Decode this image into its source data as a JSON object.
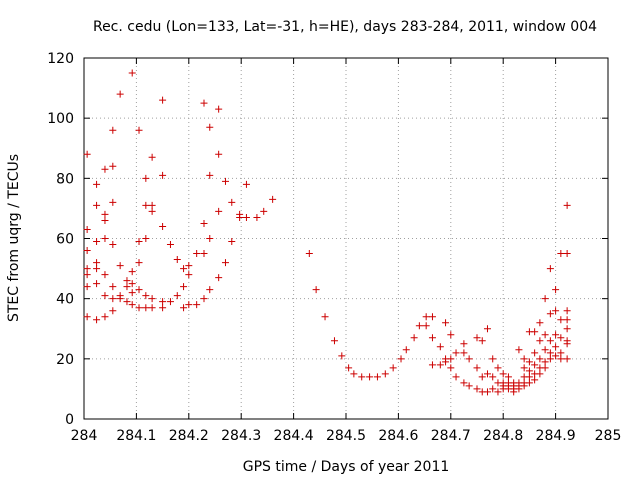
{
  "chart_data": {
    "type": "scatter",
    "title": "Rec. cedu (Lon=133, Lat=-31, h=HE), days 283-284, 2011, window 004",
    "xlabel": "GPS time / Days of year 2011",
    "ylabel": "STEC from uqrg / TECUs",
    "xlim": [
      284,
      285
    ],
    "ylim": [
      0,
      120
    ],
    "x_ticks": [
      "284",
      "284.1",
      "284.2",
      "284.3",
      "284.4",
      "284.5",
      "284.6",
      "284.7",
      "284.8",
      "284.9",
      "285"
    ],
    "y_ticks": [
      "0",
      "20",
      "40",
      "60",
      "80",
      "100",
      "120"
    ],
    "grid": true,
    "marker": "+",
    "color": "#cc0000",
    "points": [
      [
        284.006,
        88
      ],
      [
        284.006,
        63
      ],
      [
        284.006,
        56
      ],
      [
        284.006,
        50
      ],
      [
        284.006,
        48
      ],
      [
        284.006,
        44
      ],
      [
        284.006,
        34
      ],
      [
        284.024,
        78
      ],
      [
        284.024,
        71
      ],
      [
        284.024,
        59
      ],
      [
        284.024,
        52
      ],
      [
        284.024,
        50
      ],
      [
        284.024,
        45
      ],
      [
        284.024,
        33
      ],
      [
        284.04,
        83
      ],
      [
        284.04,
        68
      ],
      [
        284.04,
        66
      ],
      [
        284.04,
        60
      ],
      [
        284.04,
        48
      ],
      [
        284.04,
        41
      ],
      [
        284.04,
        34
      ],
      [
        284.055,
        96
      ],
      [
        284.055,
        84
      ],
      [
        284.055,
        72
      ],
      [
        284.055,
        58
      ],
      [
        284.055,
        44
      ],
      [
        284.055,
        40
      ],
      [
        284.055,
        36
      ],
      [
        284.069,
        108
      ],
      [
        284.069,
        51
      ],
      [
        284.069,
        41
      ],
      [
        284.069,
        40
      ],
      [
        284.082,
        46
      ],
      [
        284.082,
        44
      ],
      [
        284.082,
        39
      ],
      [
        284.092,
        115
      ],
      [
        284.092,
        49
      ],
      [
        284.092,
        45
      ],
      [
        284.092,
        42
      ],
      [
        284.092,
        38
      ],
      [
        284.105,
        96
      ],
      [
        284.105,
        59
      ],
      [
        284.105,
        52
      ],
      [
        284.105,
        43
      ],
      [
        284.105,
        37
      ],
      [
        284.118,
        80
      ],
      [
        284.118,
        71
      ],
      [
        284.118,
        60
      ],
      [
        284.118,
        41
      ],
      [
        284.118,
        37
      ],
      [
        284.13,
        87
      ],
      [
        284.13,
        71
      ],
      [
        284.13,
        69
      ],
      [
        284.13,
        40
      ],
      [
        284.13,
        37
      ],
      [
        284.15,
        106
      ],
      [
        284.15,
        81
      ],
      [
        284.15,
        64
      ],
      [
        284.15,
        39
      ],
      [
        284.15,
        37
      ],
      [
        284.165,
        58
      ],
      [
        284.165,
        39
      ],
      [
        284.178,
        53
      ],
      [
        284.178,
        41
      ],
      [
        284.19,
        50
      ],
      [
        284.19,
        44
      ],
      [
        284.19,
        37
      ],
      [
        284.2,
        51
      ],
      [
        284.2,
        48
      ],
      [
        284.2,
        38
      ],
      [
        284.215,
        55
      ],
      [
        284.215,
        38
      ],
      [
        284.229,
        105
      ],
      [
        284.229,
        65
      ],
      [
        284.229,
        55
      ],
      [
        284.229,
        40
      ],
      [
        284.24,
        97
      ],
      [
        284.24,
        81
      ],
      [
        284.24,
        60
      ],
      [
        284.24,
        43
      ],
      [
        284.257,
        103
      ],
      [
        284.257,
        88
      ],
      [
        284.257,
        69
      ],
      [
        284.257,
        47
      ],
      [
        284.27,
        79
      ],
      [
        284.27,
        52
      ],
      [
        284.282,
        72
      ],
      [
        284.282,
        59
      ],
      [
        284.297,
        68
      ],
      [
        284.297,
        67
      ],
      [
        284.31,
        78
      ],
      [
        284.31,
        67
      ],
      [
        284.33,
        67
      ],
      [
        284.343,
        69
      ],
      [
        284.36,
        73
      ],
      [
        284.43,
        55
      ],
      [
        284.443,
        43
      ],
      [
        284.46,
        34
      ],
      [
        284.478,
        26
      ],
      [
        284.492,
        21
      ],
      [
        284.505,
        17
      ],
      [
        284.515,
        15
      ],
      [
        284.53,
        14
      ],
      [
        284.545,
        14
      ],
      [
        284.56,
        14
      ],
      [
        284.575,
        15
      ],
      [
        284.59,
        17
      ],
      [
        284.605,
        20
      ],
      [
        284.615,
        23
      ],
      [
        284.63,
        27
      ],
      [
        284.64,
        31
      ],
      [
        284.653,
        34
      ],
      [
        284.653,
        31
      ],
      [
        284.665,
        34
      ],
      [
        284.665,
        27
      ],
      [
        284.665,
        18
      ],
      [
        284.68,
        24
      ],
      [
        284.68,
        18
      ],
      [
        284.69,
        32
      ],
      [
        284.69,
        20
      ],
      [
        284.69,
        19
      ],
      [
        284.7,
        28
      ],
      [
        284.7,
        20
      ],
      [
        284.7,
        17
      ],
      [
        284.71,
        22
      ],
      [
        284.71,
        14
      ],
      [
        284.725,
        25
      ],
      [
        284.725,
        22
      ],
      [
        284.725,
        12
      ],
      [
        284.735,
        20
      ],
      [
        284.735,
        11
      ],
      [
        284.75,
        27
      ],
      [
        284.75,
        17
      ],
      [
        284.75,
        10
      ],
      [
        284.76,
        26
      ],
      [
        284.76,
        14
      ],
      [
        284.76,
        9
      ],
      [
        284.77,
        30
      ],
      [
        284.77,
        15
      ],
      [
        284.77,
        9
      ],
      [
        284.78,
        20
      ],
      [
        284.78,
        14
      ],
      [
        284.78,
        10
      ],
      [
        284.79,
        17
      ],
      [
        284.79,
        12
      ],
      [
        284.79,
        9
      ],
      [
        284.8,
        15
      ],
      [
        284.8,
        12
      ],
      [
        284.8,
        11
      ],
      [
        284.8,
        10
      ],
      [
        284.81,
        14
      ],
      [
        284.81,
        12
      ],
      [
        284.81,
        11
      ],
      [
        284.81,
        10
      ],
      [
        284.82,
        12
      ],
      [
        284.82,
        11
      ],
      [
        284.82,
        10
      ],
      [
        284.82,
        9
      ],
      [
        284.83,
        23
      ],
      [
        284.83,
        12
      ],
      [
        284.83,
        11
      ],
      [
        284.83,
        10
      ],
      [
        284.84,
        20
      ],
      [
        284.84,
        17
      ],
      [
        284.84,
        14
      ],
      [
        284.84,
        12
      ],
      [
        284.84,
        11
      ],
      [
        284.85,
        29
      ],
      [
        284.85,
        19
      ],
      [
        284.85,
        16
      ],
      [
        284.85,
        14
      ],
      [
        284.85,
        12
      ],
      [
        284.86,
        29
      ],
      [
        284.86,
        22
      ],
      [
        284.86,
        18
      ],
      [
        284.86,
        15
      ],
      [
        284.86,
        13
      ],
      [
        284.87,
        32
      ],
      [
        284.87,
        26
      ],
      [
        284.87,
        20
      ],
      [
        284.87,
        17
      ],
      [
        284.87,
        15
      ],
      [
        284.88,
        40
      ],
      [
        284.88,
        28
      ],
      [
        284.88,
        23
      ],
      [
        284.88,
        19
      ],
      [
        284.88,
        17
      ],
      [
        284.89,
        50
      ],
      [
        284.89,
        35
      ],
      [
        284.89,
        26
      ],
      [
        284.89,
        22
      ],
      [
        284.89,
        20
      ],
      [
        284.9,
        43
      ],
      [
        284.9,
        36
      ],
      [
        284.9,
        28
      ],
      [
        284.9,
        24
      ],
      [
        284.9,
        21
      ],
      [
        284.91,
        55
      ],
      [
        284.91,
        33
      ],
      [
        284.91,
        27
      ],
      [
        284.91,
        22
      ],
      [
        284.91,
        20
      ],
      [
        284.922,
        71
      ],
      [
        284.922,
        55
      ],
      [
        284.922,
        36
      ],
      [
        284.922,
        33
      ],
      [
        284.922,
        30
      ],
      [
        284.922,
        26
      ],
      [
        284.922,
        25
      ],
      [
        284.922,
        20
      ]
    ]
  }
}
